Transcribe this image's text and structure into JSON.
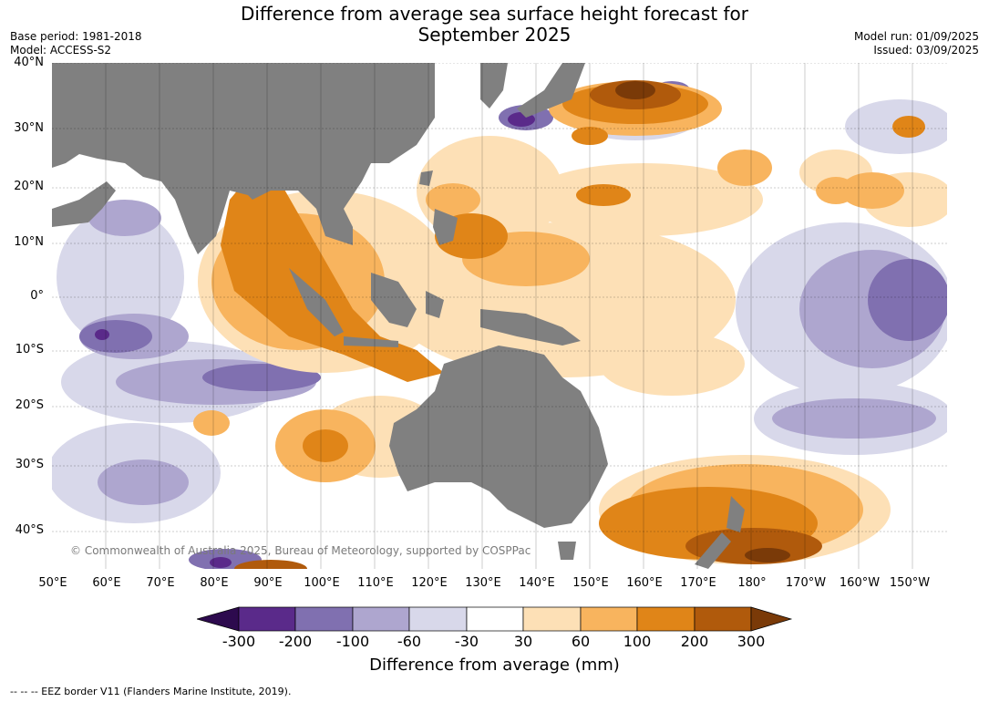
{
  "title_line1": "Difference from average sea surface height forecast for",
  "title_line2": "September 2025",
  "base_period": "Base period: 1981-2018",
  "model": "Model: ACCESS-S2",
  "model_run": "Model run: 01/09/2025",
  "issued": "Issued: 03/09/2025",
  "lat_labels": [
    "40°N",
    "30°N",
    "20°N",
    "10°N",
    "0°",
    "10°S",
    "20°S",
    "30°S",
    "40°S"
  ],
  "lon_labels": [
    "50°E",
    "60°E",
    "70°E",
    "80°E",
    "90°E",
    "100°E",
    "110°E",
    "120°E",
    "130°E",
    "140°E",
    "150°E",
    "160°E",
    "170°E",
    "180°",
    "170°W",
    "160°W",
    "150°W"
  ],
  "credit": "© Commonwealth of Australia 2025, Bureau of Meteorology, supported by COSPPac",
  "colorbar": {
    "ticks": [
      "-300",
      "-200",
      "-100",
      "-60",
      "-30",
      "30",
      "60",
      "100",
      "200",
      "300"
    ],
    "colors": [
      "#2d0a4e",
      "#5a2a8a",
      "#8070b0",
      "#aea6cf",
      "#d8d8ea",
      "#ffffff",
      "#fde0b6",
      "#f8b45e",
      "#e08518",
      "#b05a0c",
      "#7a3a08"
    ],
    "label": "Difference from average (mm)"
  },
  "land_color": "#808080",
  "footnote": "--  --  -- EEZ border V11 (Flanders Marine Institute, 2019)."
}
